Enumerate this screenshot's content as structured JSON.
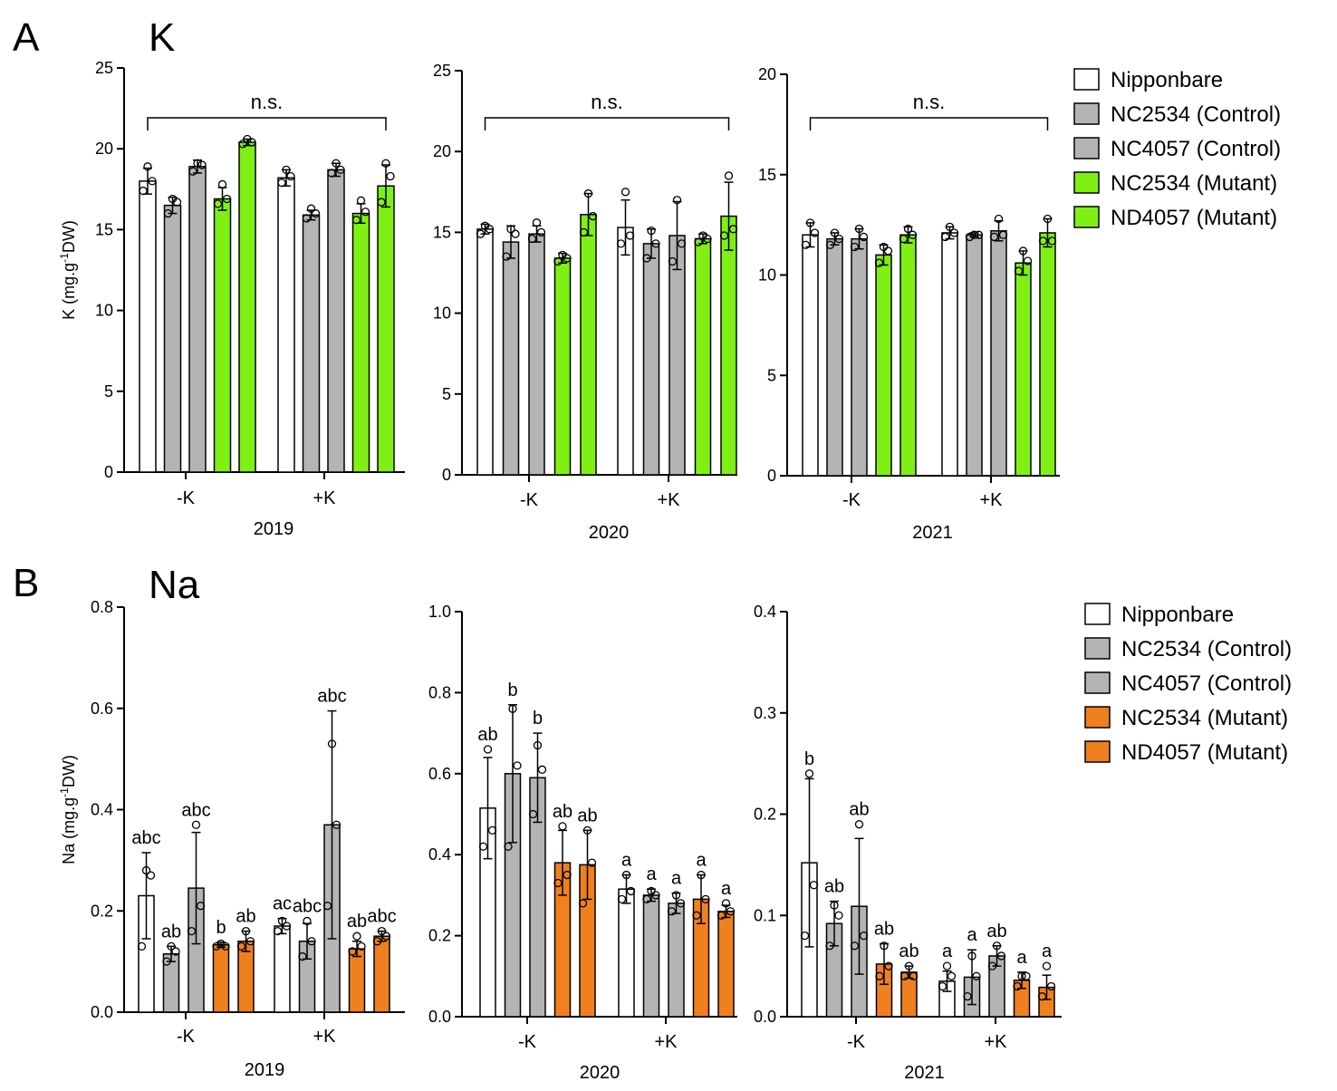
{
  "figure": {
    "panel_a": {
      "letter": "A",
      "title": "K"
    },
    "panel_b": {
      "letter": "B",
      "title": "Na"
    }
  },
  "colors": {
    "nipponbare": "#ffffff",
    "control": "#b4b4b4",
    "mutant_k": "#80f014",
    "mutant_na": "#f0801e",
    "stroke": "#000000"
  },
  "legend_a": {
    "items": [
      {
        "label": "Nipponbare",
        "color_key": "nipponbare"
      },
      {
        "label": "NC2534 (Control)",
        "color_key": "control"
      },
      {
        "label": "NC4057 (Control)",
        "color_key": "control"
      },
      {
        "label": "NC2534 (Mutant)",
        "color_key": "mutant_k"
      },
      {
        "label": "ND4057 (Mutant)",
        "color_key": "mutant_k"
      }
    ]
  },
  "legend_b": {
    "items": [
      {
        "label": "Nipponbare",
        "color_key": "nipponbare"
      },
      {
        "label": "NC2534 (Control)",
        "color_key": "control"
      },
      {
        "label": "NC4057 (Control)",
        "color_key": "control"
      },
      {
        "label": "NC2534 (Mutant)",
        "color_key": "mutant_na"
      },
      {
        "label": "ND4057 (Mutant)",
        "color_key": "mutant_na"
      }
    ]
  },
  "chart_data": [
    {
      "id": "k2019",
      "panel": "A",
      "type": "bar",
      "title": "K",
      "ylabel": "K (mg.g-1DW)",
      "xlabel": "2019",
      "categories": [
        "-K",
        "+K"
      ],
      "ylim": [
        0,
        25
      ],
      "yticks": [
        0,
        5,
        10,
        15,
        20,
        25
      ],
      "bracket": "n.s.",
      "mutant_color_key": "mutant_k",
      "series": [
        {
          "name": "Nipponbare",
          "values": [
            18.0,
            18.2
          ],
          "errors": [
            0.8,
            0.5
          ],
          "points": [
            [
              17.4,
              18.0,
              18.9
            ],
            [
              17.9,
              18.3,
              18.7
            ]
          ],
          "letters": [
            "",
            ""
          ]
        },
        {
          "name": "NC2534 (Control)",
          "values": [
            16.5,
            15.9
          ],
          "errors": [
            0.5,
            0.3
          ],
          "points": [
            [
              16.0,
              16.7,
              16.9
            ],
            [
              15.7,
              16.0,
              16.3
            ]
          ],
          "letters": [
            "",
            ""
          ]
        },
        {
          "name": "NC4057 (Control)",
          "values": [
            18.9,
            18.7
          ],
          "errors": [
            0.4,
            0.4
          ],
          "points": [
            [
              18.6,
              19.0,
              19.1
            ],
            [
              18.5,
              18.7,
              19.1
            ]
          ],
          "letters": [
            "",
            ""
          ]
        },
        {
          "name": "NC2534 (Mutant)",
          "values": [
            16.9,
            16.0
          ],
          "errors": [
            0.7,
            0.6
          ],
          "points": [
            [
              16.6,
              16.9,
              17.8
            ],
            [
              15.6,
              16.1,
              16.8
            ]
          ],
          "letters": [
            "",
            ""
          ]
        },
        {
          "name": "ND4057 (Mutant)",
          "values": [
            20.4,
            17.7
          ],
          "errors": [
            0.2,
            1.3
          ],
          "points": [
            [
              20.3,
              20.4,
              20.6
            ],
            [
              16.7,
              18.3,
              19.1
            ]
          ],
          "letters": [
            "",
            ""
          ]
        }
      ]
    },
    {
      "id": "k2020",
      "panel": "A",
      "type": "bar",
      "title": "K",
      "ylabel": "",
      "xlabel": "2020",
      "categories": [
        "-K",
        "+K"
      ],
      "ylim": [
        0,
        25
      ],
      "yticks": [
        0,
        5,
        10,
        15,
        20,
        25
      ],
      "bracket": "n.s.",
      "mutant_color_key": "mutant_k",
      "series": [
        {
          "name": "Nipponbare",
          "values": [
            15.2,
            15.3
          ],
          "errors": [
            0.3,
            1.7
          ],
          "points": [
            [
              14.9,
              15.2,
              15.4
            ],
            [
              14.3,
              14.8,
              17.5
            ]
          ],
          "letters": [
            "",
            ""
          ]
        },
        {
          "name": "NC2534 (Control)",
          "values": [
            14.4,
            14.3
          ],
          "errors": [
            1.0,
            0.9
          ],
          "points": [
            [
              13.5,
              14.9,
              15.2
            ],
            [
              13.4,
              14.3,
              15.1
            ]
          ],
          "letters": [
            "",
            ""
          ]
        },
        {
          "name": "NC4057 (Control)",
          "values": [
            14.9,
            14.8
          ],
          "errors": [
            0.5,
            2.1
          ],
          "points": [
            [
              14.6,
              15.0,
              15.6
            ],
            [
              13.2,
              14.3,
              17.0
            ]
          ],
          "letters": [
            "",
            ""
          ]
        },
        {
          "name": "NC2534 (Mutant)",
          "values": [
            13.4,
            14.6
          ],
          "errors": [
            0.3,
            0.3
          ],
          "points": [
            [
              13.2,
              13.4,
              13.6
            ],
            [
              14.4,
              14.6,
              14.8
            ]
          ],
          "letters": [
            "",
            ""
          ]
        },
        {
          "name": "ND4057 (Mutant)",
          "values": [
            16.1,
            16.0
          ],
          "errors": [
            1.3,
            2.1
          ],
          "points": [
            [
              15.0,
              16.0,
              17.4
            ],
            [
              14.8,
              15.2,
              18.5
            ]
          ],
          "letters": [
            "",
            ""
          ]
        }
      ]
    },
    {
      "id": "k2021",
      "panel": "A",
      "type": "bar",
      "title": "K",
      "ylabel": "",
      "xlabel": "2021",
      "categories": [
        "-K",
        "+K"
      ],
      "ylim": [
        0,
        20
      ],
      "yticks": [
        0,
        5,
        10,
        15,
        20
      ],
      "bracket": "n.s.",
      "mutant_color_key": "mutant_k",
      "series": [
        {
          "name": "Nipponbare",
          "values": [
            12.0,
            12.1
          ],
          "errors": [
            0.6,
            0.3
          ],
          "points": [
            [
              11.5,
              12.1,
              12.6
            ],
            [
              11.9,
              12.1,
              12.4
            ]
          ],
          "letters": [
            "",
            ""
          ]
        },
        {
          "name": "NC2534 (Control)",
          "values": [
            11.8,
            12.0
          ],
          "errors": [
            0.3,
            0.1
          ],
          "points": [
            [
              11.5,
              11.8,
              12.1
            ],
            [
              11.9,
              12.0,
              12.0
            ]
          ],
          "letters": [
            "",
            ""
          ]
        },
        {
          "name": "NC4057 (Control)",
          "values": [
            11.8,
            12.2
          ],
          "errors": [
            0.5,
            0.5
          ],
          "points": [
            [
              11.4,
              11.9,
              12.3
            ],
            [
              11.9,
              12.0,
              12.8
            ]
          ],
          "letters": [
            "",
            ""
          ]
        },
        {
          "name": "NC2534 (Mutant)",
          "values": [
            11.0,
            10.6
          ],
          "errors": [
            0.5,
            0.6
          ],
          "points": [
            [
              10.6,
              11.2,
              11.4
            ],
            [
              10.2,
              10.7,
              11.2
            ]
          ],
          "letters": [
            "",
            ""
          ]
        },
        {
          "name": "ND4057 (Mutant)",
          "values": [
            12.0,
            12.1
          ],
          "errors": [
            0.4,
            0.7
          ],
          "points": [
            [
              11.8,
              12.0,
              12.3
            ],
            [
              11.7,
              11.7,
              12.8
            ]
          ],
          "letters": [
            "",
            ""
          ]
        }
      ]
    },
    {
      "id": "na2019",
      "panel": "B",
      "type": "bar",
      "title": "Na",
      "ylabel": "Na (mg.g-1DW)",
      "xlabel": "2019",
      "categories": [
        "-K",
        "+K"
      ],
      "ylim": [
        0,
        0.8
      ],
      "yticks": [
        0.0,
        0.2,
        0.4,
        0.6,
        0.8
      ],
      "tick_decimals": 1,
      "bracket": "",
      "mutant_color_key": "mutant_na",
      "series": [
        {
          "name": "Nipponbare",
          "values": [
            0.23,
            0.17
          ],
          "errors": [
            0.085,
            0.015
          ],
          "points": [
            [
              0.13,
              0.27,
              0.28
            ],
            [
              0.16,
              0.17,
              0.18
            ]
          ],
          "letters": [
            "abc",
            "ac"
          ]
        },
        {
          "name": "NC2534 (Control)",
          "values": [
            0.115,
            0.14
          ],
          "errors": [
            0.015,
            0.035
          ],
          "points": [
            [
              0.1,
              0.12,
              0.13
            ],
            [
              0.11,
              0.14,
              0.18
            ]
          ],
          "letters": [
            "ab",
            "abc"
          ]
        },
        {
          "name": "NC4057 (Control)",
          "values": [
            0.245,
            0.37
          ],
          "errors": [
            0.11,
            0.225
          ],
          "points": [
            [
              0.16,
              0.21,
              0.37
            ],
            [
              0.21,
              0.37,
              0.53
            ]
          ],
          "letters": [
            "abc",
            "abc"
          ]
        },
        {
          "name": "NC2534 (Mutant)",
          "values": [
            0.133,
            0.125
          ],
          "errors": [
            0.005,
            0.015
          ],
          "points": [
            [
              0.13,
              0.13,
              0.135
            ],
            [
              0.12,
              0.13,
              0.15
            ]
          ],
          "letters": [
            "b",
            "ab"
          ]
        },
        {
          "name": "ND4057 (Mutant)",
          "values": [
            0.14,
            0.15
          ],
          "errors": [
            0.02,
            0.01
          ],
          "points": [
            [
              0.13,
              0.14,
              0.16
            ],
            [
              0.14,
              0.15,
              0.16
            ]
          ],
          "letters": [
            "ab",
            "abc"
          ]
        }
      ]
    },
    {
      "id": "na2020",
      "panel": "B",
      "type": "bar",
      "title": "Na",
      "ylabel": "",
      "xlabel": "2020",
      "categories": [
        "-K",
        "+K"
      ],
      "ylim": [
        0,
        1.0
      ],
      "yticks": [
        0.0,
        0.2,
        0.4,
        0.6,
        0.8,
        1.0
      ],
      "tick_decimals": 1,
      "bracket": "",
      "mutant_color_key": "mutant_na",
      "series": [
        {
          "name": "Nipponbare",
          "values": [
            0.515,
            0.315
          ],
          "errors": [
            0.125,
            0.035
          ],
          "points": [
            [
              0.42,
              0.46,
              0.66
            ],
            [
              0.29,
              0.31,
              0.35
            ]
          ],
          "letters": [
            "ab",
            "a"
          ]
        },
        {
          "name": "NC2534 (Control)",
          "values": [
            0.6,
            0.3
          ],
          "errors": [
            0.17,
            0.015
          ],
          "points": [
            [
              0.42,
              0.62,
              0.76
            ],
            [
              0.29,
              0.3,
              0.31
            ]
          ],
          "letters": [
            "b",
            "a"
          ]
        },
        {
          "name": "NC4057 (Control)",
          "values": [
            0.59,
            0.28
          ],
          "errors": [
            0.11,
            0.025
          ],
          "points": [
            [
              0.5,
              0.61,
              0.67
            ],
            [
              0.26,
              0.28,
              0.3
            ]
          ],
          "letters": [
            "b",
            "a"
          ]
        },
        {
          "name": "NC2534 (Mutant)",
          "values": [
            0.38,
            0.29
          ],
          "errors": [
            0.08,
            0.06
          ],
          "points": [
            [
              0.33,
              0.35,
              0.47
            ],
            [
              0.25,
              0.29,
              0.35
            ]
          ],
          "letters": [
            "ab",
            "a"
          ]
        },
        {
          "name": "ND4057 (Mutant)",
          "values": [
            0.375,
            0.26
          ],
          "errors": [
            0.085,
            0.015
          ],
          "points": [
            [
              0.28,
              0.38,
              0.46
            ],
            [
              0.25,
              0.26,
              0.28
            ]
          ],
          "letters": [
            "ab",
            "a"
          ]
        }
      ]
    },
    {
      "id": "na2021",
      "panel": "B",
      "type": "bar",
      "title": "Na",
      "ylabel": "",
      "xlabel": "2021",
      "categories": [
        "-K",
        "+K"
      ],
      "ylim": [
        0,
        0.4
      ],
      "yticks": [
        0.0,
        0.1,
        0.2,
        0.3,
        0.4
      ],
      "tick_decimals": 1,
      "bracket": "",
      "mutant_color_key": "mutant_na",
      "series": [
        {
          "name": "Nipponbare",
          "values": [
            0.152,
            0.035
          ],
          "errors": [
            0.083,
            0.01
          ],
          "points": [
            [
              0.08,
              0.13,
              0.24
            ],
            [
              0.03,
              0.04,
              0.05
            ]
          ],
          "letters": [
            "b",
            "a"
          ]
        },
        {
          "name": "NC2534 (Control)",
          "values": [
            0.092,
            0.039
          ],
          "errors": [
            0.022,
            0.027
          ],
          "points": [
            [
              0.07,
              0.1,
              0.11
            ],
            [
              0.02,
              0.04,
              0.06
            ]
          ],
          "letters": [
            "ab",
            "a"
          ]
        },
        {
          "name": "NC4057 (Control)",
          "values": [
            0.109,
            0.06
          ],
          "errors": [
            0.067,
            0.01
          ],
          "points": [
            [
              0.07,
              0.08,
              0.19
            ],
            [
              0.05,
              0.06,
              0.07
            ]
          ],
          "letters": [
            "ab",
            "ab"
          ]
        },
        {
          "name": "NC2534 (Mutant)",
          "values": [
            0.052,
            0.036
          ],
          "errors": [
            0.02,
            0.008
          ],
          "points": [
            [
              0.04,
              0.05,
              0.07
            ],
            [
              0.03,
              0.04,
              0.04
            ]
          ],
          "letters": [
            "ab",
            "a"
          ]
        },
        {
          "name": "ND4057 (Mutant)",
          "values": [
            0.044,
            0.029
          ],
          "errors": [
            0.006,
            0.012
          ],
          "points": [
            [
              0.04,
              0.04,
              0.05
            ],
            [
              0.02,
              0.03,
              0.05
            ]
          ],
          "letters": [
            "ab",
            "a"
          ]
        }
      ]
    }
  ]
}
